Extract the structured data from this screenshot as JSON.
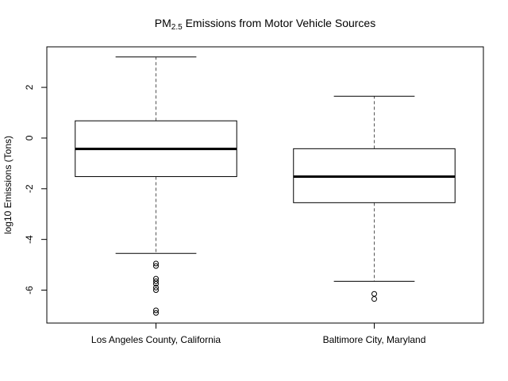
{
  "chart_data": {
    "type": "boxplot",
    "title": "PM2.5 Emissions from Motor Vehicle Sources",
    "title_parts": {
      "base": "PM",
      "subscript": "2.5",
      "rest": " Emissions from Motor Vehicle Sources"
    },
    "xlabel": "",
    "ylabel": "log10 Emissions (Tons)",
    "ylim": [
      -7.3,
      3.6
    ],
    "yticks": [
      -6,
      -4,
      -2,
      0,
      2
    ],
    "ytick_labels": [
      "-6",
      "-4",
      "-2",
      "0",
      "2"
    ],
    "categories": [
      "Los Angeles County, California",
      "Baltimore City, Maryland"
    ],
    "boxes": [
      {
        "name": "Los Angeles County, California",
        "whisker_low": -4.55,
        "q1": -1.52,
        "median": -0.43,
        "q3": 0.68,
        "whisker_high": 3.2,
        "outliers": [
          -4.95,
          -5.05,
          -5.55,
          -5.65,
          -5.75,
          -5.9,
          -6.0,
          -6.8,
          -6.9
        ]
      },
      {
        "name": "Baltimore City, Maryland",
        "whisker_low": -5.65,
        "q1": -2.55,
        "median": -1.52,
        "q3": -0.42,
        "whisker_high": 1.65,
        "outliers": [
          -6.15,
          -6.35
        ]
      }
    ],
    "colors": {
      "box_fill": "#ffffff",
      "stroke": "#000000",
      "whisker": "#555555"
    },
    "grid": false,
    "legend": "none"
  }
}
